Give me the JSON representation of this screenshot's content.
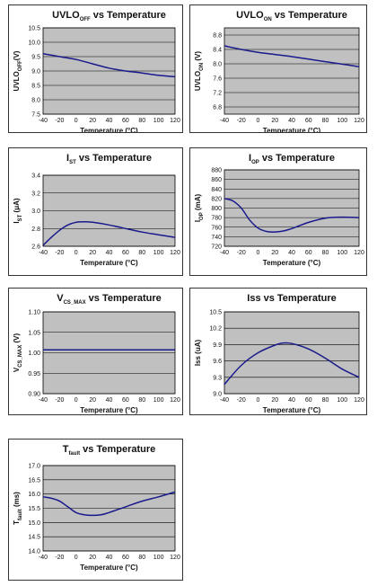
{
  "colors": {
    "plot_bg": "#c0c0c0",
    "curve": "#1a1a8c",
    "grid": "#000000"
  },
  "chart_data": [
    {
      "type": "line",
      "title": {
        "main": "UVLO",
        "sub": "OFF",
        "rest": " vs Temperature"
      },
      "xlabel": "Temperature (°C)",
      "ylabel": {
        "main": "UVLO",
        "sub": "OFF",
        "rest": "(V)"
      },
      "xlim": [
        -40,
        120
      ],
      "ylim": [
        7.5,
        10.5
      ],
      "xticks": [
        "-40",
        "-20",
        "0",
        "20",
        "40",
        "60",
        "80",
        "100",
        "120"
      ],
      "yticks": [
        "7.5",
        "8.0",
        "8.5",
        "9.0",
        "9.5",
        "10.0",
        "10.5"
      ],
      "series": [
        {
          "x": [
            -40,
            -20,
            0,
            20,
            40,
            60,
            80,
            100,
            120
          ],
          "y": [
            9.6,
            9.5,
            9.4,
            9.25,
            9.1,
            9.0,
            8.93,
            8.85,
            8.8
          ]
        }
      ]
    },
    {
      "type": "line",
      "title": {
        "main": "UVLO",
        "sub": "ON",
        "rest": " vs Temperature"
      },
      "xlabel": "Temperature (°C)",
      "ylabel": {
        "main": "UVLO",
        "sub": "ON",
        "rest": " (V)"
      },
      "xlim": [
        -40,
        120
      ],
      "ylim": [
        6.6,
        9.0
      ],
      "xticks": [
        "-40",
        "-20",
        "0",
        "20",
        "40",
        "60",
        "80",
        "100",
        "120"
      ],
      "yticks": [
        "6.8",
        "7.2",
        "7.6",
        "8.0",
        "8.4",
        "8.8"
      ],
      "series": [
        {
          "x": [
            -40,
            -20,
            0,
            20,
            40,
            60,
            80,
            100,
            120
          ],
          "y": [
            8.5,
            8.4,
            8.32,
            8.26,
            8.2,
            8.13,
            8.06,
            7.99,
            7.92
          ]
        }
      ]
    },
    {
      "type": "line",
      "title": {
        "main": "I",
        "sub": "ST",
        "rest": " vs Temperature"
      },
      "xlabel": "Temperature (°C)",
      "ylabel": {
        "main": "I",
        "sub": "ST",
        "rest": " (μA)"
      },
      "xlim": [
        -40,
        120
      ],
      "ylim": [
        2.6,
        3.4
      ],
      "xticks": [
        "-40",
        "-20",
        "0",
        "20",
        "40",
        "60",
        "80",
        "100",
        "120"
      ],
      "yticks": [
        "2.6",
        "2.8",
        "3.0",
        "3.2",
        "3.4"
      ],
      "series": [
        {
          "x": [
            -40,
            -30,
            -20,
            -10,
            0,
            10,
            20,
            40,
            60,
            80,
            100,
            120
          ],
          "y": [
            2.61,
            2.7,
            2.78,
            2.84,
            2.87,
            2.875,
            2.87,
            2.84,
            2.8,
            2.76,
            2.73,
            2.7
          ]
        }
      ]
    },
    {
      "type": "line",
      "title": {
        "main": "I",
        "sub": "OP",
        "rest": "  vs Temperature"
      },
      "xlabel": "Temperature (°C)",
      "ylabel": {
        "main": "I",
        "sub": "OP",
        "rest": " (mA)"
      },
      "xlim": [
        -40,
        120
      ],
      "ylim": [
        720,
        880
      ],
      "xticks": [
        "-40",
        "-20",
        "0",
        "20",
        "40",
        "60",
        "80",
        "100",
        "120"
      ],
      "yticks": [
        "720",
        "740",
        "760",
        "780",
        "800",
        "820",
        "840",
        "860",
        "880"
      ],
      "series": [
        {
          "x": [
            -40,
            -30,
            -20,
            -10,
            0,
            10,
            20,
            30,
            40,
            60,
            80,
            100,
            120
          ],
          "y": [
            820,
            815,
            800,
            775,
            758,
            751,
            750,
            752,
            757,
            770,
            779,
            781,
            780
          ]
        }
      ]
    },
    {
      "type": "line",
      "title": {
        "main": "V",
        "sub": "CS_MAX",
        "rest": " vs Temperature"
      },
      "xlabel": "Temperature (°C)",
      "ylabel": {
        "main": "V",
        "sub": "CS_MAX",
        "rest": " (V)"
      },
      "xlim": [
        -40,
        120
      ],
      "ylim": [
        0.9,
        1.1
      ],
      "xticks": [
        "-40",
        "-20",
        "0",
        "20",
        "40",
        "60",
        "80",
        "100",
        "120"
      ],
      "yticks": [
        "0.90",
        "0.95",
        "1.00",
        "1.05",
        "1.10"
      ],
      "series": [
        {
          "x": [
            -40,
            0,
            40,
            80,
            120
          ],
          "y": [
            1.007,
            1.007,
            1.007,
            1.007,
            1.007
          ]
        }
      ]
    },
    {
      "type": "line",
      "title": {
        "main": "Iss vs Temperature",
        "sub": "",
        "rest": ""
      },
      "xlabel": "Temperature (°C)",
      "ylabel": {
        "main": "Iss (uA)",
        "sub": "",
        "rest": ""
      },
      "xlim": [
        -40,
        120
      ],
      "ylim": [
        9.0,
        10.5
      ],
      "xticks": [
        "-40",
        "-20",
        "0",
        "20",
        "40",
        "60",
        "80",
        "100",
        "120"
      ],
      "yticks": [
        "9.0",
        "9.3",
        "9.6",
        "9.9",
        "10.2",
        "10.5"
      ],
      "series": [
        {
          "x": [
            -40,
            -20,
            0,
            20,
            30,
            40,
            60,
            80,
            100,
            120
          ],
          "y": [
            9.17,
            9.52,
            9.75,
            9.89,
            9.93,
            9.92,
            9.82,
            9.65,
            9.45,
            9.3
          ]
        }
      ]
    },
    {
      "type": "line",
      "title": {
        "main": "T",
        "sub": "fault",
        "rest": " vs Temperature"
      },
      "xlabel": "Temperature (°C)",
      "ylabel": {
        "main": "T",
        "sub": "fault",
        "rest": " (ms)"
      },
      "xlim": [
        -40,
        120
      ],
      "ylim": [
        14.0,
        17.0
      ],
      "xticks": [
        "-40",
        "-20",
        "0",
        "20",
        "40",
        "60",
        "80",
        "100",
        "120"
      ],
      "yticks": [
        "14.0",
        "14.5",
        "15.0",
        "15.5",
        "16.0",
        "16.5",
        "17.0"
      ],
      "series": [
        {
          "x": [
            -40,
            -30,
            -20,
            -10,
            0,
            10,
            20,
            30,
            40,
            60,
            80,
            100,
            120
          ],
          "y": [
            15.9,
            15.85,
            15.75,
            15.55,
            15.35,
            15.27,
            15.25,
            15.27,
            15.35,
            15.55,
            15.75,
            15.9,
            16.07
          ]
        }
      ]
    }
  ]
}
